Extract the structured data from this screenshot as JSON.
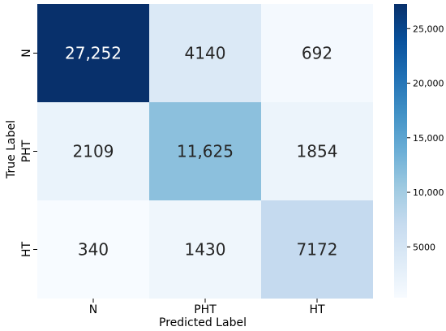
{
  "chart_data": {
    "type": "heatmap",
    "title": "",
    "xlabel": "Predicted Label",
    "ylabel": "True Label",
    "x_categories": [
      "N",
      "PHT",
      "HT"
    ],
    "y_categories": [
      "N",
      "PHT",
      "HT"
    ],
    "values": [
      [
        27252,
        4140,
        692
      ],
      [
        2109,
        11625,
        1854
      ],
      [
        340,
        1430,
        7172
      ]
    ],
    "cell_labels": [
      [
        "27,252",
        "4140",
        "692"
      ],
      [
        "2109",
        "11,625",
        "1854"
      ],
      [
        "340",
        "1430",
        "7172"
      ]
    ],
    "colormap": "Blues",
    "colorbar": {
      "min": 340,
      "max": 27252,
      "ticks": [
        5000,
        10000,
        15000,
        20000,
        25000
      ],
      "tick_labels": [
        "5000",
        "10,000",
        "15,000",
        "20,000",
        "25,000"
      ]
    }
  }
}
